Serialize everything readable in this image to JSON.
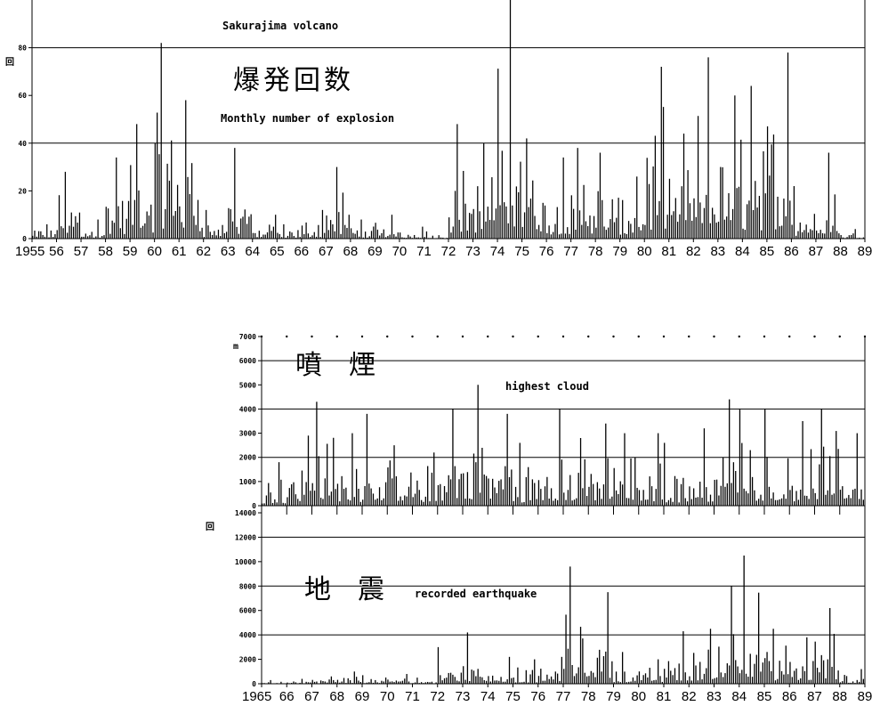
{
  "chart_data": [
    {
      "type": "bar",
      "title": "Sakurajima volcano",
      "subtitle": "Monthly number of explosion",
      "title_jp": "爆発回数",
      "unit": "回",
      "x_tick_labels": [
        "1955",
        "56",
        "57",
        "58",
        "59",
        "60",
        "61",
        "62",
        "63",
        "64",
        "65",
        "66",
        "67",
        "68",
        "69",
        "70",
        "71",
        "72",
        "73",
        "74",
        "75",
        "76",
        "77",
        "78",
        "79",
        "80",
        "81",
        "82",
        "83",
        "84",
        "85",
        "86",
        "87",
        "88",
        "89"
      ],
      "x_range": [
        1955,
        1989
      ],
      "y_ticks": [
        "0",
        "20",
        "40",
        "60",
        "80"
      ],
      "y_range": [
        0,
        100
      ],
      "reference_lines": [
        40,
        80
      ],
      "annual_peaks": [
        {
          "year": 1955,
          "peak": 6
        },
        {
          "year": 1956,
          "peak": 28
        },
        {
          "year": 1957,
          "peak": 8
        },
        {
          "year": 1958,
          "peak": 34
        },
        {
          "year": 1959,
          "peak": 48
        },
        {
          "year": 1960,
          "peak": 82
        },
        {
          "year": 1961,
          "peak": 58
        },
        {
          "year": 1962,
          "peak": 12
        },
        {
          "year": 1963,
          "peak": 38
        },
        {
          "year": 1964,
          "peak": 10
        },
        {
          "year": 1965,
          "peak": 6
        },
        {
          "year": 1966,
          "peak": 12
        },
        {
          "year": 1967,
          "peak": 30
        },
        {
          "year": 1968,
          "peak": 8
        },
        {
          "year": 1969,
          "peak": 10
        },
        {
          "year": 1970,
          "peak": 5
        },
        {
          "year": 1971,
          "peak": 3
        },
        {
          "year": 1972,
          "peak": 48
        },
        {
          "year": 1973,
          "peak": 40
        },
        {
          "year": 1974,
          "peak": 100
        },
        {
          "year": 1975,
          "peak": 42
        },
        {
          "year": 1976,
          "peak": 34
        },
        {
          "year": 1977,
          "peak": 38
        },
        {
          "year": 1978,
          "peak": 36
        },
        {
          "year": 1979,
          "peak": 26
        },
        {
          "year": 1980,
          "peak": 72
        },
        {
          "year": 1981,
          "peak": 44
        },
        {
          "year": 1982,
          "peak": 76
        },
        {
          "year": 1983,
          "peak": 60
        },
        {
          "year": 1984,
          "peak": 64
        },
        {
          "year": 1985,
          "peak": 78
        },
        {
          "year": 1986,
          "peak": 22
        },
        {
          "year": 1987,
          "peak": 36
        },
        {
          "year": 1988,
          "peak": 4
        }
      ]
    },
    {
      "type": "bar",
      "subtitle": "highest cloud",
      "title_jp": "噴　煙",
      "unit": "m",
      "y_ticks": [
        "0",
        "1000",
        "2000",
        "3000",
        "4000",
        "5000",
        "6000",
        "7000"
      ],
      "y_range": [
        0,
        7000
      ],
      "reference_lines": [
        2000,
        4000,
        6000
      ],
      "x_range": [
        1965,
        1989
      ],
      "annual_peaks": [
        {
          "year": 1965,
          "peak": 1800
        },
        {
          "year": 1966,
          "peak": 2900
        },
        {
          "year": 1967,
          "peak": 4300
        },
        {
          "year": 1968,
          "peak": 3000
        },
        {
          "year": 1969,
          "peak": 3800
        },
        {
          "year": 1970,
          "peak": 2500
        },
        {
          "year": 1971,
          "peak": 2200
        },
        {
          "year": 1972,
          "peak": 4000
        },
        {
          "year": 1973,
          "peak": 5000
        },
        {
          "year": 1974,
          "peak": 3800
        },
        {
          "year": 1975,
          "peak": 2600
        },
        {
          "year": 1976,
          "peak": 4000
        },
        {
          "year": 1977,
          "peak": 2800
        },
        {
          "year": 1978,
          "peak": 3400
        },
        {
          "year": 1979,
          "peak": 3000
        },
        {
          "year": 1980,
          "peak": 3000
        },
        {
          "year": 1981,
          "peak": 2600
        },
        {
          "year": 1982,
          "peak": 3200
        },
        {
          "year": 1983,
          "peak": 4400
        },
        {
          "year": 1984,
          "peak": 4000
        },
        {
          "year": 1985,
          "peak": 4000
        },
        {
          "year": 1986,
          "peak": 3500
        },
        {
          "year": 1987,
          "peak": 4000
        },
        {
          "year": 1988,
          "peak": 3000
        }
      ]
    },
    {
      "type": "bar",
      "subtitle": "recorded earthquake",
      "title_jp": "地　震",
      "unit": "回",
      "x_tick_labels": [
        "1965",
        "66",
        "67",
        "68",
        "69",
        "70",
        "71",
        "72",
        "73",
        "74",
        "75",
        "76",
        "77",
        "78",
        "79",
        "80",
        "81",
        "82",
        "83",
        "84",
        "85",
        "86",
        "87",
        "88",
        "89"
      ],
      "x_range": [
        1965,
        1989
      ],
      "y_ticks": [
        "0",
        "2000",
        "4000",
        "6000",
        "8000",
        "10000",
        "12000",
        "14000"
      ],
      "y_range": [
        0,
        14000
      ],
      "reference_lines": [
        4000,
        8000,
        12000
      ],
      "annual_peaks": [
        {
          "year": 1965,
          "peak": 300
        },
        {
          "year": 1966,
          "peak": 400
        },
        {
          "year": 1967,
          "peak": 600
        },
        {
          "year": 1968,
          "peak": 1000
        },
        {
          "year": 1969,
          "peak": 700
        },
        {
          "year": 1970,
          "peak": 800
        },
        {
          "year": 1971,
          "peak": 500
        },
        {
          "year": 1972,
          "peak": 3000
        },
        {
          "year": 1973,
          "peak": 4200
        },
        {
          "year": 1974,
          "peak": 2200
        },
        {
          "year": 1975,
          "peak": 2000
        },
        {
          "year": 1976,
          "peak": 2200
        },
        {
          "year": 1977,
          "peak": 9600
        },
        {
          "year": 1978,
          "peak": 7500
        },
        {
          "year": 1979,
          "peak": 2600
        },
        {
          "year": 1980,
          "peak": 2000
        },
        {
          "year": 1981,
          "peak": 4300
        },
        {
          "year": 1982,
          "peak": 4500
        },
        {
          "year": 1983,
          "peak": 8000
        },
        {
          "year": 1984,
          "peak": 10500
        },
        {
          "year": 1985,
          "peak": 4500
        },
        {
          "year": 1986,
          "peak": 3800
        },
        {
          "year": 1987,
          "peak": 6200
        },
        {
          "year": 1988,
          "peak": 1200
        }
      ]
    }
  ]
}
